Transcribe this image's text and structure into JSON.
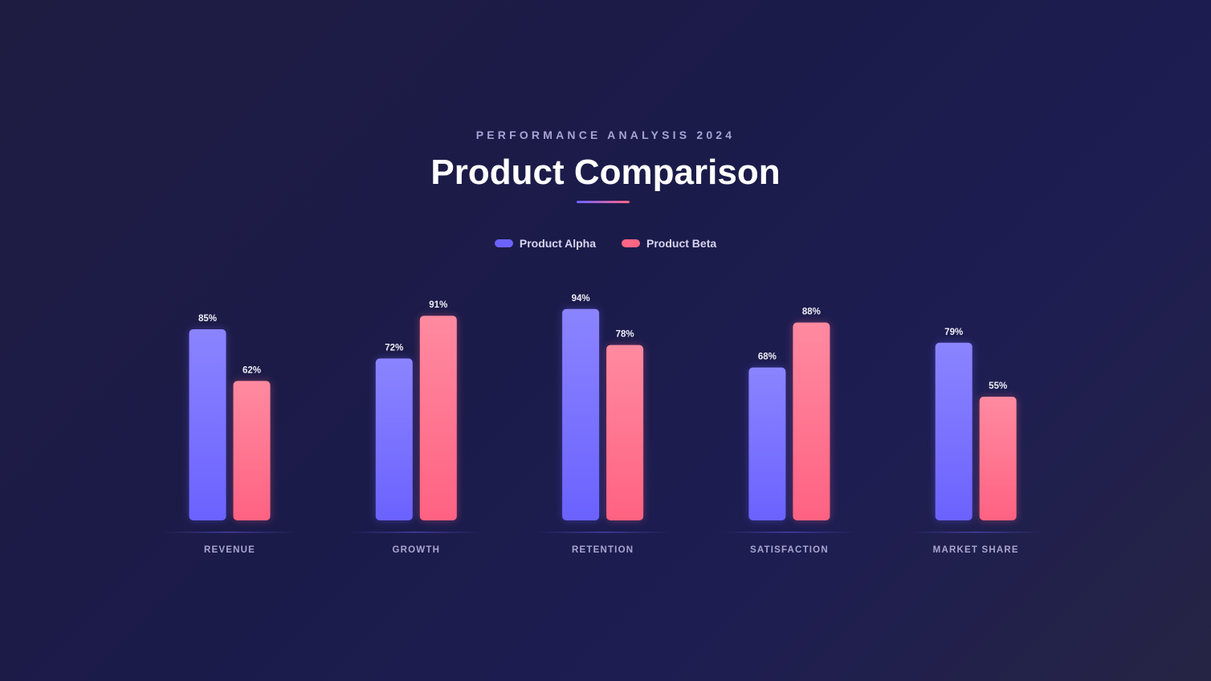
{
  "header": {
    "subtitle": "PERFORMANCE ANALYSIS 2024",
    "title": "Product Comparison"
  },
  "chart_data": {
    "type": "bar",
    "title": "Product Comparison",
    "subtitle": "PERFORMANCE ANALYSIS 2024",
    "categories": [
      "REVENUE",
      "GROWTH",
      "RETENTION",
      "SATISFACTION",
      "MARKET SHARE"
    ],
    "series": [
      {
        "name": "Product Alpha",
        "values": [
          85,
          72,
          94,
          68,
          79
        ],
        "color": "#6c63ff"
      },
      {
        "name": "Product Beta",
        "values": [
          62,
          91,
          78,
          88,
          55
        ],
        "color": "#ff6584"
      }
    ],
    "value_suffix": "%",
    "ylim": [
      0,
      100
    ],
    "grid": false,
    "legend": "top-center"
  }
}
